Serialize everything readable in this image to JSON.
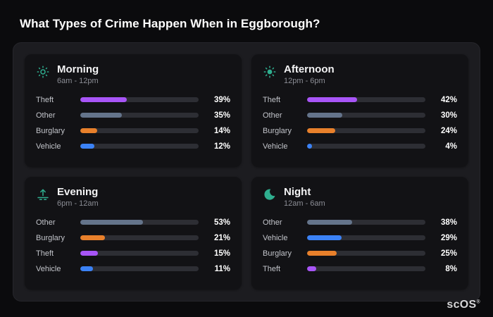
{
  "page": {
    "title": "What Types of Crime Happen When in Eggborough?",
    "watermark": "scOS",
    "watermark_reg": "®"
  },
  "colors": {
    "Theft": "#a855f7",
    "Other": "#64748b",
    "Burglary": "#e8802b",
    "Vehicle": "#3b82f6"
  },
  "chart_data": [
    {
      "type": "bar",
      "title": "Morning",
      "subtitle": "6am - 12pm",
      "icon": "sun-rays-icon",
      "unit": "%",
      "xlim": [
        0,
        100
      ],
      "categories": [
        "Theft",
        "Other",
        "Burglary",
        "Vehicle"
      ],
      "values": [
        39,
        35,
        14,
        12
      ]
    },
    {
      "type": "bar",
      "title": "Afternoon",
      "subtitle": "12pm - 6pm",
      "icon": "sun-icon",
      "unit": "%",
      "xlim": [
        0,
        100
      ],
      "categories": [
        "Theft",
        "Other",
        "Burglary",
        "Vehicle"
      ],
      "values": [
        42,
        30,
        24,
        4
      ]
    },
    {
      "type": "bar",
      "title": "Evening",
      "subtitle": "6pm - 12am",
      "icon": "sunset-icon",
      "unit": "%",
      "xlim": [
        0,
        100
      ],
      "categories": [
        "Other",
        "Burglary",
        "Theft",
        "Vehicle"
      ],
      "values": [
        53,
        21,
        15,
        11
      ]
    },
    {
      "type": "bar",
      "title": "Night",
      "subtitle": "12am - 6am",
      "icon": "moon-icon",
      "unit": "%",
      "xlim": [
        0,
        100
      ],
      "categories": [
        "Other",
        "Vehicle",
        "Burglary",
        "Theft"
      ],
      "values": [
        38,
        29,
        25,
        8
      ]
    }
  ]
}
